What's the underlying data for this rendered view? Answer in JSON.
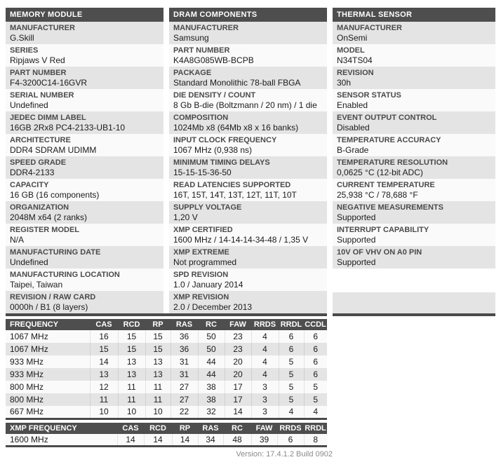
{
  "colors": {
    "header_bar": "#4e4e4e",
    "row_stripe_gray": "#e4e4e4",
    "row_stripe_white": "#fafafa",
    "label_text": "#4a4a4a",
    "value_text": "#1b1b1b",
    "bottom_border": "#4a4a4a",
    "version_text": "#8a8a8a"
  },
  "sections": [
    {
      "title": "MEMORY MODULE",
      "rows": [
        {
          "label": "MANUFACTURER",
          "value": "G.Skill"
        },
        {
          "label": "SERIES",
          "value": "Ripjaws V Red"
        },
        {
          "label": "PART NUMBER",
          "value": "F4-3200C14-16GVR"
        },
        {
          "label": "SERIAL NUMBER",
          "value": "Undefined"
        },
        {
          "label": "JEDEC DIMM LABEL",
          "value": "16GB 2Rx8 PC4-2133-UB1-10"
        },
        {
          "label": "ARCHITECTURE",
          "value": "DDR4 SDRAM UDIMM"
        },
        {
          "label": "SPEED GRADE",
          "value": "DDR4-2133"
        },
        {
          "label": "CAPACITY",
          "value": "16 GB (16 components)"
        },
        {
          "label": "ORGANIZATION",
          "value": "2048M x64 (2 ranks)"
        },
        {
          "label": "REGISTER MODEL",
          "value": "N/A"
        },
        {
          "label": "MANUFACTURING DATE",
          "value": "Undefined"
        },
        {
          "label": "MANUFACTURING LOCATION",
          "value": "Taipei, Taiwan"
        },
        {
          "label": "REVISION / RAW CARD",
          "value": "0000h / B1 (8 layers)"
        }
      ]
    },
    {
      "title": "DRAM COMPONENTS",
      "rows": [
        {
          "label": "MANUFACTURER",
          "value": "Samsung"
        },
        {
          "label": "PART NUMBER",
          "value": "K4A8G085WB-BCPB"
        },
        {
          "label": "PACKAGE",
          "value": "Standard Monolithic 78-ball FBGA"
        },
        {
          "label": "DIE DENSITY / COUNT",
          "value": "8 Gb B-die (Boltzmann / 20 nm) / 1 die"
        },
        {
          "label": "COMPOSITION",
          "value": "1024Mb x8 (64Mb x8 x 16 banks)"
        },
        {
          "label": "INPUT CLOCK FREQUENCY",
          "value": "1067 MHz (0,938 ns)"
        },
        {
          "label": "MINIMUM TIMING DELAYS",
          "value": "15-15-15-36-50"
        },
        {
          "label": "READ LATENCIES SUPPORTED",
          "value": "16T, 15T, 14T, 13T, 12T, 11T, 10T"
        },
        {
          "label": "SUPPLY VOLTAGE",
          "value": "1,20 V"
        },
        {
          "label": "XMP CERTIFIED",
          "value": "1600 MHz / 14-14-14-34-48 / 1,35 V"
        },
        {
          "label": "XMP EXTREME",
          "value": "Not programmed"
        },
        {
          "label": "SPD REVISION",
          "value": "1.0 / January 2014"
        },
        {
          "label": "XMP REVISION",
          "value": "2.0 / December 2013"
        }
      ]
    },
    {
      "title": "THERMAL SENSOR",
      "rows": [
        {
          "label": "MANUFACTURER",
          "value": "OnSemi"
        },
        {
          "label": "MODEL",
          "value": "N34TS04"
        },
        {
          "label": "REVISION",
          "value": "30h"
        },
        {
          "label": "SENSOR STATUS",
          "value": "Enabled"
        },
        {
          "label": "EVENT OUTPUT CONTROL",
          "value": "Disabled"
        },
        {
          "label": "TEMPERATURE ACCURACY",
          "value": "B-Grade"
        },
        {
          "label": "TEMPERATURE RESOLUTION",
          "value": "0,0625 °C (12-bit ADC)"
        },
        {
          "label": "CURRENT TEMPERATURE",
          "value": "25,938 °C / 78,688 °F"
        },
        {
          "label": "NEGATIVE MEASUREMENTS",
          "value": "Supported"
        },
        {
          "label": "INTERRUPT CAPABILITY",
          "value": "Supported"
        },
        {
          "label": "10V OF VHV ON A0 PIN",
          "value": "Supported"
        }
      ]
    }
  ],
  "timing_table": {
    "headers": [
      "FREQUENCY",
      "CAS",
      "RCD",
      "RP",
      "RAS",
      "RC",
      "FAW",
      "RRDS",
      "RRDL",
      "CCDL"
    ],
    "rows": [
      [
        "1067 MHz",
        "16",
        "15",
        "15",
        "36",
        "50",
        "23",
        "4",
        "6",
        "6"
      ],
      [
        "1067 MHz",
        "15",
        "15",
        "15",
        "36",
        "50",
        "23",
        "4",
        "6",
        "6"
      ],
      [
        "933 MHz",
        "14",
        "13",
        "13",
        "31",
        "44",
        "20",
        "4",
        "5",
        "6"
      ],
      [
        "933 MHz",
        "13",
        "13",
        "13",
        "31",
        "44",
        "20",
        "4",
        "5",
        "6"
      ],
      [
        "800 MHz",
        "12",
        "11",
        "11",
        "27",
        "38",
        "17",
        "3",
        "5",
        "5"
      ],
      [
        "800 MHz",
        "11",
        "11",
        "11",
        "27",
        "38",
        "17",
        "3",
        "5",
        "5"
      ],
      [
        "667 MHz",
        "10",
        "10",
        "10",
        "22",
        "32",
        "14",
        "3",
        "4",
        "4"
      ]
    ]
  },
  "xmp_table": {
    "headers": [
      "XMP FREQUENCY",
      "CAS",
      "RCD",
      "RP",
      "RAS",
      "RC",
      "FAW",
      "RRDS",
      "RRDL"
    ],
    "rows": [
      [
        "1600 MHz",
        "14",
        "14",
        "14",
        "34",
        "48",
        "39",
        "6",
        "8"
      ]
    ]
  },
  "footer": {
    "version_text": "Version: 17.4.1.2 Build 0902"
  }
}
